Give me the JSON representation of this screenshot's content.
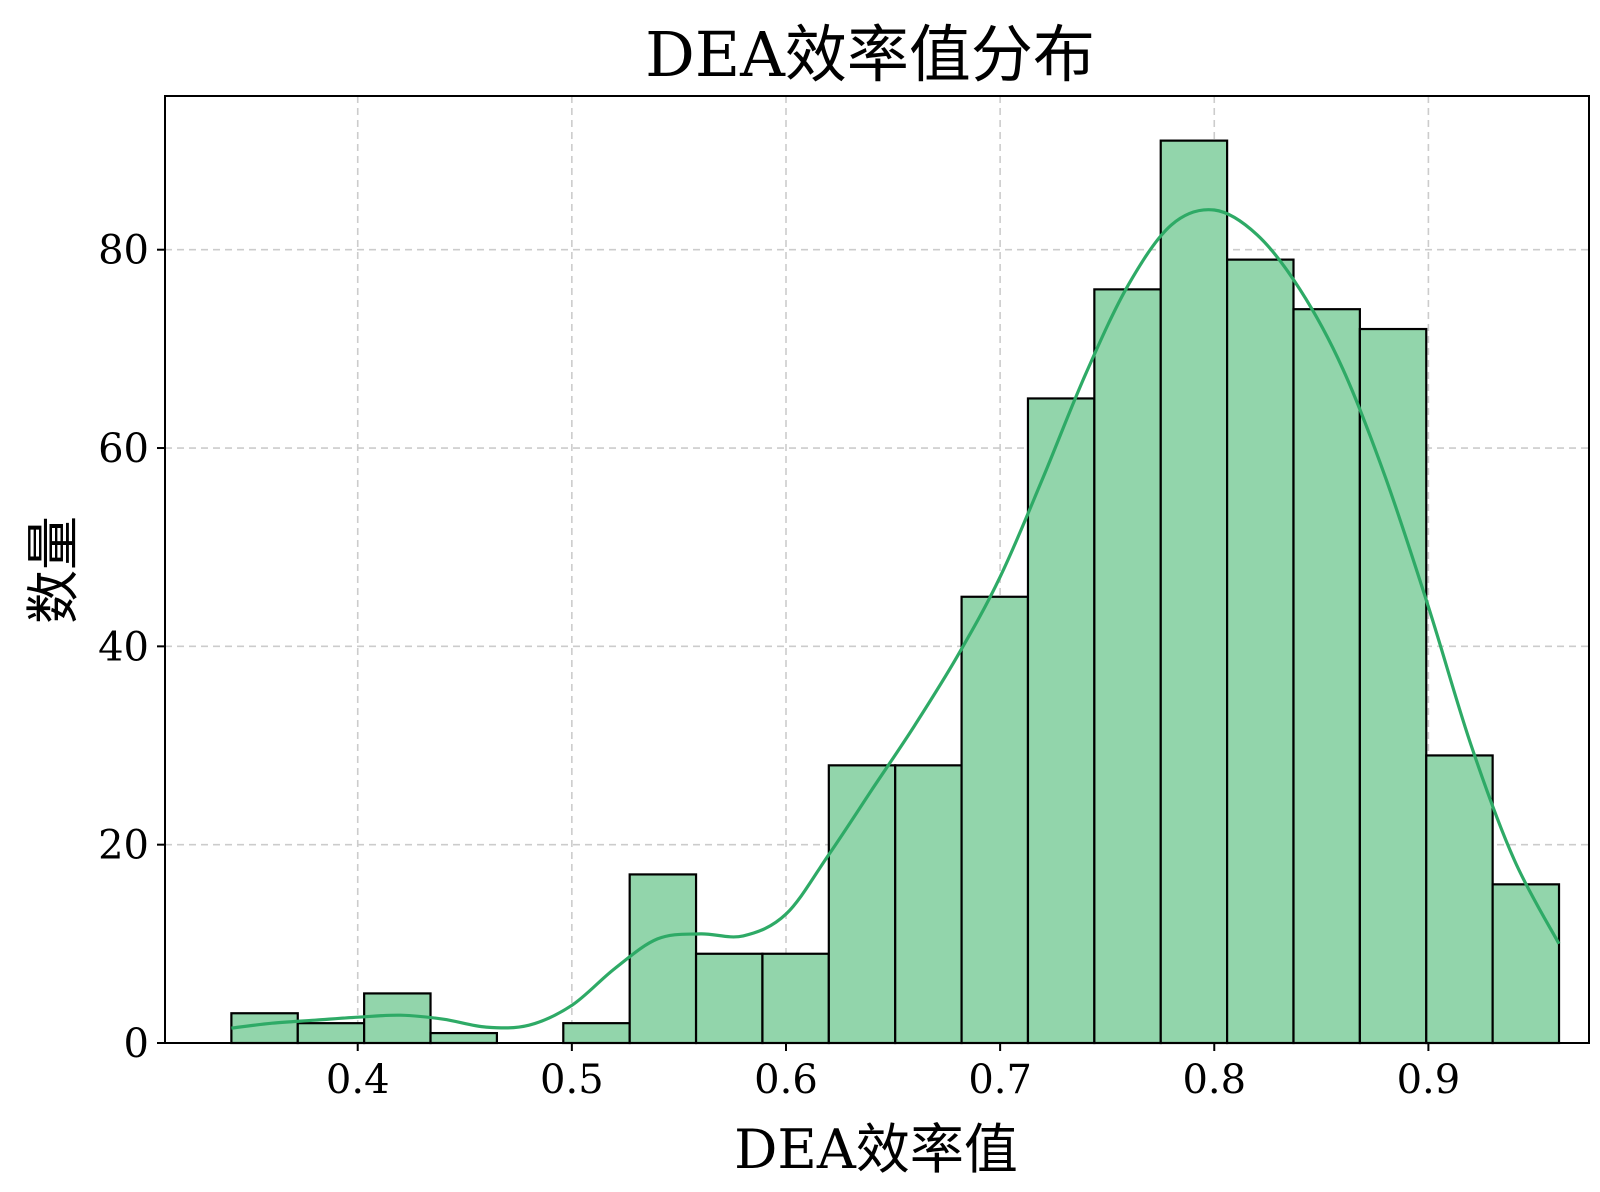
{
  "chart_data": {
    "type": "bar",
    "subtype": "histogram_with_kde",
    "title": "DEA效率值分布",
    "xlabel": "DEA效率值",
    "ylabel": "数量",
    "xlim": [
      0.31,
      0.975
    ],
    "ylim": [
      0,
      95.5
    ],
    "xticks": [
      0.4,
      0.5,
      0.6,
      0.7,
      0.8,
      0.9
    ],
    "xtick_labels": [
      "0.4",
      "0.5",
      "0.6",
      "0.7",
      "0.8",
      "0.9"
    ],
    "yticks": [
      0,
      20,
      40,
      60,
      80
    ],
    "ytick_labels": [
      "0",
      "20",
      "40",
      "60",
      "80"
    ],
    "grid": true,
    "bins": [
      {
        "x0": 0.341,
        "x1": 0.372,
        "count": 3
      },
      {
        "x0": 0.372,
        "x1": 0.403,
        "count": 2
      },
      {
        "x0": 0.403,
        "x1": 0.434,
        "count": 5
      },
      {
        "x0": 0.434,
        "x1": 0.465,
        "count": 1
      },
      {
        "x0": 0.465,
        "x1": 0.496,
        "count": 0
      },
      {
        "x0": 0.496,
        "x1": 0.527,
        "count": 2
      },
      {
        "x0": 0.527,
        "x1": 0.558,
        "count": 17
      },
      {
        "x0": 0.558,
        "x1": 0.589,
        "count": 9
      },
      {
        "x0": 0.589,
        "x1": 0.62,
        "count": 9
      },
      {
        "x0": 0.62,
        "x1": 0.651,
        "count": 28
      },
      {
        "x0": 0.651,
        "x1": 0.682,
        "count": 28
      },
      {
        "x0": 0.682,
        "x1": 0.713,
        "count": 45
      },
      {
        "x0": 0.713,
        "x1": 0.744,
        "count": 65
      },
      {
        "x0": 0.744,
        "x1": 0.775,
        "count": 76
      },
      {
        "x0": 0.775,
        "x1": 0.806,
        "count": 91
      },
      {
        "x0": 0.806,
        "x1": 0.837,
        "count": 79
      },
      {
        "x0": 0.837,
        "x1": 0.868,
        "count": 74
      },
      {
        "x0": 0.868,
        "x1": 0.899,
        "count": 72
      },
      {
        "x0": 0.899,
        "x1": 0.93,
        "count": 29
      },
      {
        "x0": 0.93,
        "x1": 0.961,
        "count": 16
      }
    ],
    "kde": {
      "x": [
        0.341,
        0.36,
        0.38,
        0.4,
        0.42,
        0.44,
        0.46,
        0.48,
        0.5,
        0.52,
        0.54,
        0.56,
        0.58,
        0.6,
        0.62,
        0.64,
        0.66,
        0.68,
        0.7,
        0.72,
        0.74,
        0.76,
        0.78,
        0.8,
        0.82,
        0.84,
        0.86,
        0.88,
        0.9,
        0.92,
        0.94,
        0.961
      ],
      "y": [
        1.5,
        2.0,
        2.3,
        2.6,
        2.8,
        2.4,
        1.6,
        1.8,
        3.8,
        7.5,
        10.5,
        11.0,
        10.8,
        13.0,
        19.0,
        25.5,
        32.0,
        39.0,
        47.0,
        57.0,
        67.5,
        76.5,
        82.5,
        84.0,
        81.5,
        76.0,
        68.0,
        57.0,
        44.0,
        30.0,
        18.5,
        10.0
      ]
    },
    "colors": {
      "bar_fill": "#92d5ab",
      "bar_edge": "#000000",
      "kde_line": "#2eaa66",
      "grid": "#cccccc"
    }
  }
}
